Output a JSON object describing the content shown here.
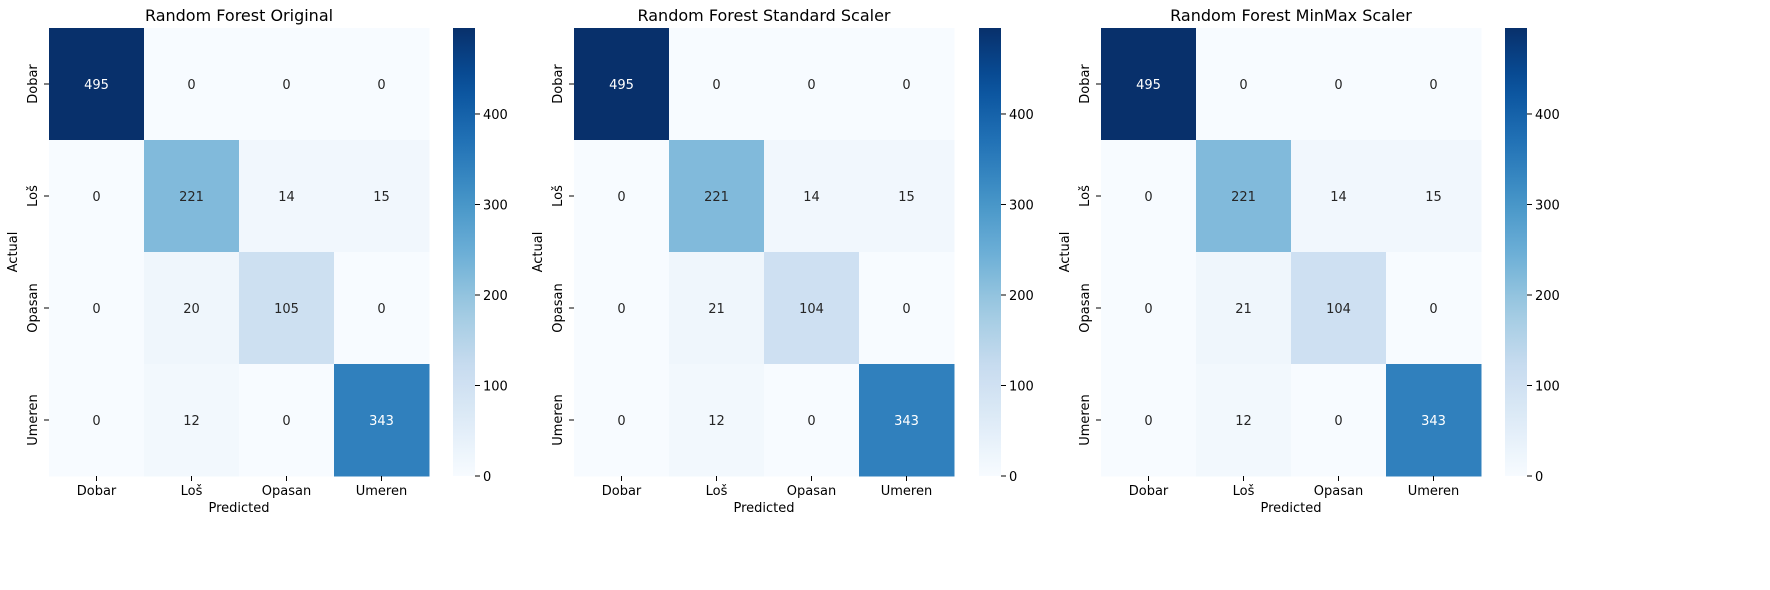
{
  "chart_data": [
    {
      "type": "heatmap",
      "title": "Random Forest Original",
      "xlabel": "Predicted",
      "ylabel": "Actual",
      "x_categories": [
        "Dobar",
        "Loš",
        "Opasan",
        "Umeren"
      ],
      "y_categories": [
        "Dobar",
        "Loš",
        "Opasan",
        "Umeren"
      ],
      "values": [
        [
          495,
          0,
          0,
          0
        ],
        [
          0,
          221,
          14,
          15
        ],
        [
          0,
          20,
          105,
          0
        ],
        [
          0,
          12,
          0,
          343
        ]
      ],
      "colormap": "Blues",
      "colorbar": {
        "range": [
          0,
          495
        ],
        "ticks": [
          0,
          100,
          200,
          300,
          400
        ]
      }
    },
    {
      "type": "heatmap",
      "title": "Random Forest Standard Scaler",
      "xlabel": "Predicted",
      "ylabel": "Actual",
      "x_categories": [
        "Dobar",
        "Loš",
        "Opasan",
        "Umeren"
      ],
      "y_categories": [
        "Dobar",
        "Loš",
        "Opasan",
        "Umeren"
      ],
      "values": [
        [
          495,
          0,
          0,
          0
        ],
        [
          0,
          221,
          14,
          15
        ],
        [
          0,
          21,
          104,
          0
        ],
        [
          0,
          12,
          0,
          343
        ]
      ],
      "colormap": "Blues",
      "colorbar": {
        "range": [
          0,
          495
        ],
        "ticks": [
          0,
          100,
          200,
          300,
          400
        ]
      }
    },
    {
      "type": "heatmap",
      "title": "Random Forest MinMax Scaler",
      "xlabel": "Predicted",
      "ylabel": "Actual",
      "x_categories": [
        "Dobar",
        "Loš",
        "Opasan",
        "Umeren"
      ],
      "y_categories": [
        "Dobar",
        "Loš",
        "Opasan",
        "Umeren"
      ],
      "values": [
        [
          495,
          0,
          0,
          0
        ],
        [
          0,
          221,
          14,
          15
        ],
        [
          0,
          21,
          104,
          0
        ],
        [
          0,
          12,
          0,
          343
        ]
      ],
      "colormap": "Blues",
      "colorbar": {
        "range": [
          0,
          495
        ],
        "ticks": [
          0,
          100,
          200,
          300,
          400
        ]
      }
    }
  ]
}
